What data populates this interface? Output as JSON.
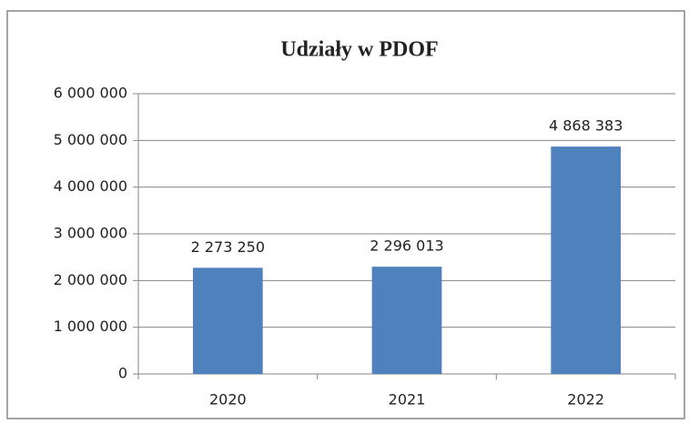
{
  "chart_data": {
    "type": "bar",
    "title": "Udziały w PDOF",
    "categories": [
      "2020",
      "2021",
      "2022"
    ],
    "values": [
      2273250,
      2296013,
      4868383
    ],
    "value_labels": [
      "2 273 250",
      "2 296 013",
      "4 868 383"
    ],
    "color": "#4f81bd",
    "ylim": [
      0,
      6000000
    ],
    "yticks": [
      0,
      {
        "value": 1000000,
        "label": "1 000 000"
      },
      {
        "value": 2000000,
        "label": "2 000 000"
      },
      {
        "value": 3000000,
        "label": "3 000 000"
      },
      {
        "value": 4000000,
        "label": "4 000 000"
      },
      {
        "value": 5000000,
        "label": "5 000 000"
      },
      {
        "value": 6000000,
        "label": "6 000 000"
      }
    ],
    "grid": true
  }
}
